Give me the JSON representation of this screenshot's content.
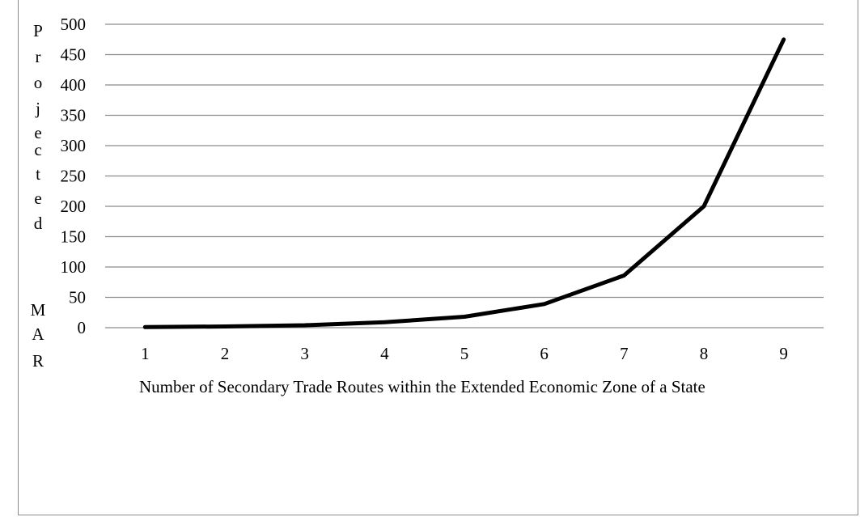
{
  "chart_data": {
    "type": "line",
    "x": [
      1,
      2,
      3,
      4,
      5,
      6,
      7,
      8,
      9
    ],
    "series": [
      {
        "values": [
          1,
          2,
          4,
          9,
          18,
          39,
          86,
          200,
          475
        ]
      }
    ],
    "ylim": [
      0,
      500
    ],
    "yticks": [
      0,
      50,
      100,
      150,
      200,
      250,
      300,
      350,
      400,
      450,
      500
    ],
    "xticks": [
      "1",
      "2",
      "3",
      "4",
      "5",
      "6",
      "7",
      "8",
      "9"
    ],
    "xlabel": "Number of Secondary Trade Routes within the Extended Economic Zone of a State",
    "ylabel": "Projected MAR",
    "grid": true,
    "legend": "none",
    "line_color": "#000000",
    "grid_color": "#8c8c8c"
  }
}
